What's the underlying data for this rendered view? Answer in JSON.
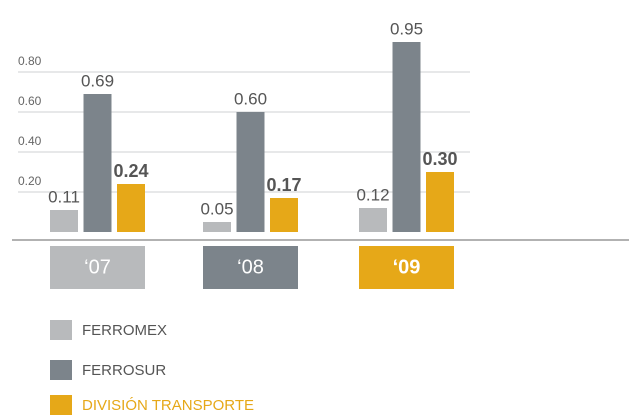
{
  "chart_data": {
    "type": "bar",
    "categories": [
      "‘07",
      "‘08",
      "‘09"
    ],
    "series": [
      {
        "name": "FERROMEX",
        "color": "#b8babc",
        "values": [
          0.11,
          0.05,
          0.12
        ],
        "value_labels": [
          "0.11",
          "0.05",
          "0.12"
        ]
      },
      {
        "name": "FERROSUR",
        "color": "#7c848b",
        "values": [
          0.69,
          0.6,
          0.95
        ],
        "value_labels": [
          "0.69",
          "0.60",
          "0.95"
        ]
      },
      {
        "name": "DIVISIÓN TRANSPORTE",
        "color": "#e6a818",
        "values": [
          0.24,
          0.17,
          0.3
        ],
        "value_labels": [
          "0.24",
          "0.17",
          "0.30"
        ]
      }
    ],
    "ylim": [
      0,
      1
    ],
    "yticks": [
      {
        "value": 0.2,
        "label": "0.20"
      },
      {
        "value": 0.4,
        "label": "0.40"
      },
      {
        "value": 0.6,
        "label": "0.60"
      },
      {
        "value": 0.8,
        "label": "0.80"
      }
    ],
    "grid": true
  }
}
